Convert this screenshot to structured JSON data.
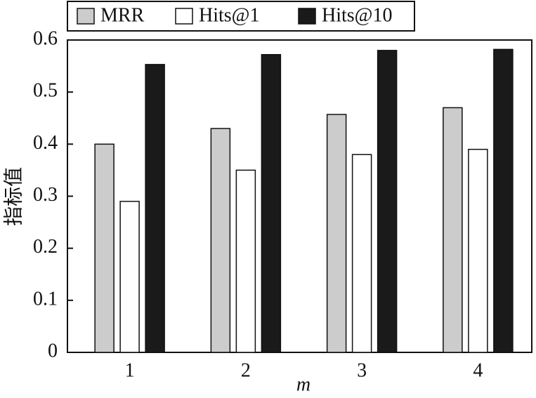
{
  "chart_data": {
    "type": "bar",
    "x_label": "m",
    "y_label": "指标值",
    "categories": [
      "1",
      "2",
      "3",
      "4"
    ],
    "series": [
      {
        "name": "MRR",
        "color": "#cccccc",
        "values": [
          0.4,
          0.43,
          0.457,
          0.47
        ]
      },
      {
        "name": "Hits@1",
        "color": "#ffffff",
        "values": [
          0.29,
          0.35,
          0.38,
          0.39
        ]
      },
      {
        "name": "Hits@10",
        "color": "#1a1a1a",
        "values": [
          0.553,
          0.572,
          0.58,
          0.582
        ]
      }
    ],
    "ylim": [
      0,
      0.6
    ],
    "yticks": [
      0,
      0.1,
      0.2,
      0.3,
      0.4,
      0.5,
      0.6
    ],
    "grid": false,
    "legend": "top"
  }
}
